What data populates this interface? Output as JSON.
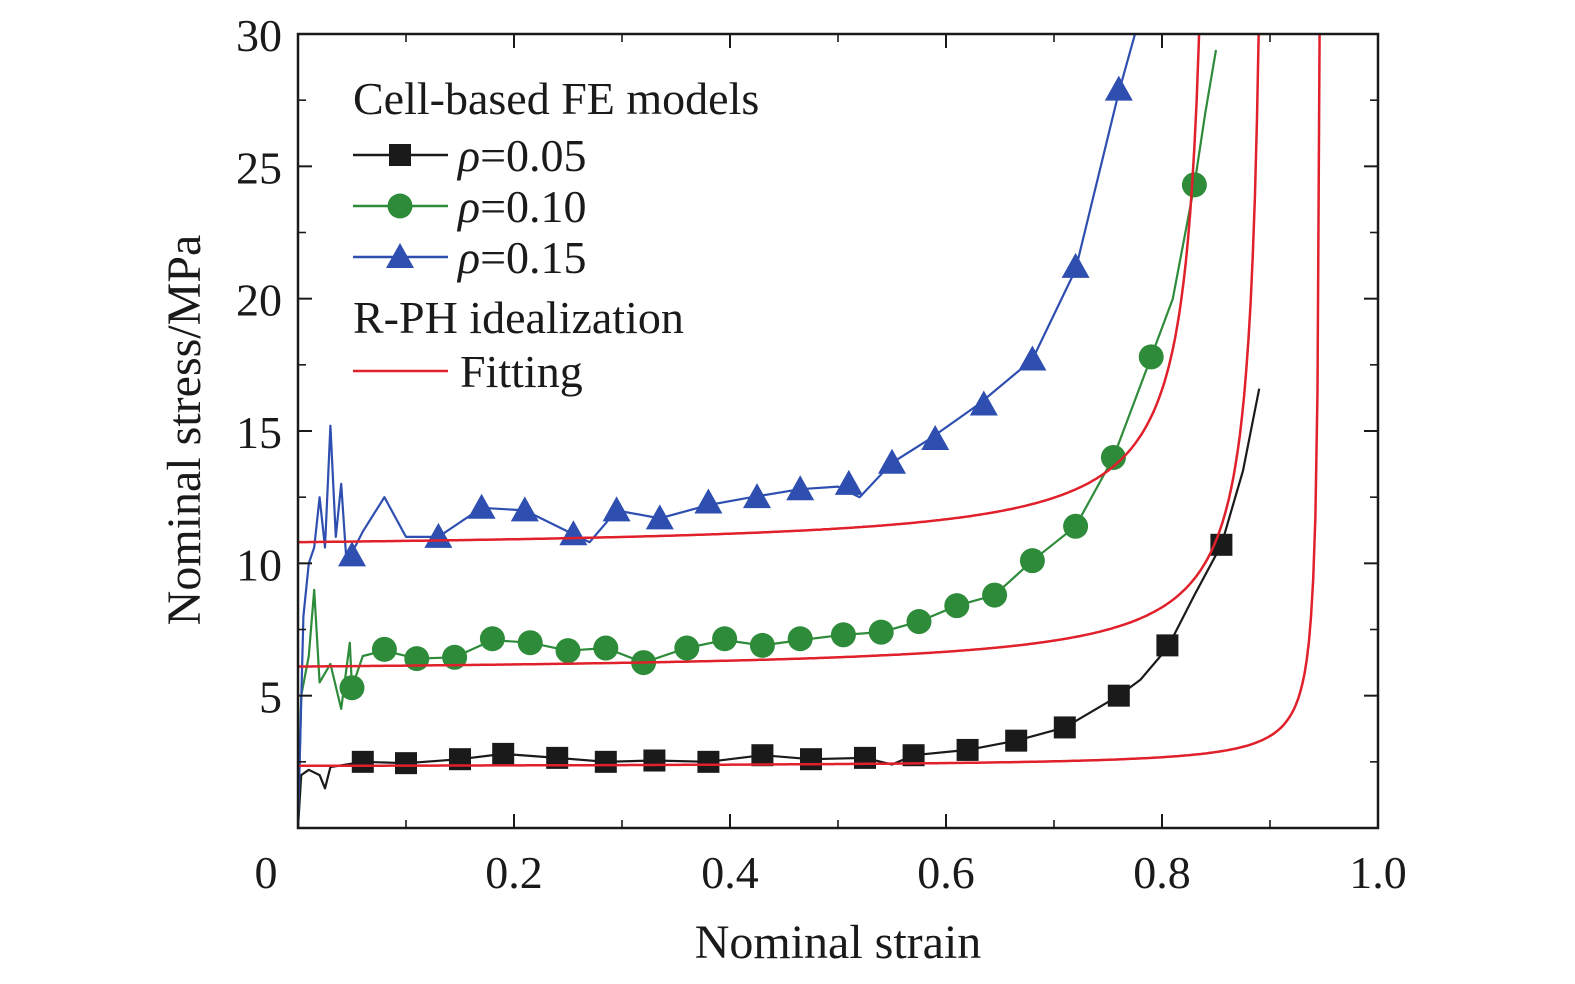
{
  "chart_data": {
    "type": "line",
    "xlabel": "Nominal strain",
    "ylabel": "Nominal stress/MPa",
    "xlim": [
      0,
      1.0
    ],
    "ylim": [
      0,
      30
    ],
    "x_ticks": [
      0,
      0.2,
      0.4,
      0.6,
      0.8,
      1.0
    ],
    "x_tick_labels": [
      "0",
      "0.2",
      "0.4",
      "0.6",
      "0.8",
      "1.0"
    ],
    "y_ticks": [
      5,
      10,
      15,
      20,
      25,
      30
    ],
    "y_tick_labels": [
      "5",
      "10",
      "15",
      "20",
      "25",
      "30"
    ],
    "grid": false,
    "legend_position": "top-left",
    "legend": {
      "heading_fe": "Cell-based FE models",
      "heading_fit": "R-PH idealization",
      "fit_label": "Fitting"
    },
    "series": [
      {
        "name": "ρ=0.05",
        "color": "#1a1a1a",
        "marker": "square",
        "fe_points": [
          [
            0.0,
            0.0
          ],
          [
            0.003,
            2.0
          ],
          [
            0.01,
            2.2
          ],
          [
            0.02,
            2.0
          ],
          [
            0.025,
            1.5
          ],
          [
            0.03,
            2.3
          ],
          [
            0.045,
            2.4
          ],
          [
            0.06,
            2.5
          ],
          [
            0.1,
            2.45
          ],
          [
            0.15,
            2.6
          ],
          [
            0.19,
            2.8
          ],
          [
            0.24,
            2.65
          ],
          [
            0.285,
            2.5
          ],
          [
            0.33,
            2.55
          ],
          [
            0.38,
            2.5
          ],
          [
            0.43,
            2.75
          ],
          [
            0.475,
            2.6
          ],
          [
            0.525,
            2.65
          ],
          [
            0.55,
            2.4
          ],
          [
            0.57,
            2.75
          ],
          [
            0.62,
            2.95
          ],
          [
            0.665,
            3.3
          ],
          [
            0.71,
            3.8
          ],
          [
            0.76,
            5.0
          ],
          [
            0.78,
            5.6
          ],
          [
            0.805,
            6.8
          ],
          [
            0.83,
            8.8
          ],
          [
            0.855,
            10.7
          ],
          [
            0.875,
            13.5
          ],
          [
            0.89,
            16.6
          ]
        ],
        "markers": [
          [
            0.06,
            2.5
          ],
          [
            0.1,
            2.45
          ],
          [
            0.15,
            2.6
          ],
          [
            0.19,
            2.8
          ],
          [
            0.24,
            2.65
          ],
          [
            0.285,
            2.5
          ],
          [
            0.33,
            2.55
          ],
          [
            0.38,
            2.5
          ],
          [
            0.43,
            2.75
          ],
          [
            0.475,
            2.6
          ],
          [
            0.525,
            2.65
          ],
          [
            0.57,
            2.75
          ],
          [
            0.62,
            2.95
          ],
          [
            0.665,
            3.3
          ],
          [
            0.71,
            3.8
          ],
          [
            0.76,
            5.0
          ],
          [
            0.805,
            6.9
          ],
          [
            0.855,
            10.7
          ]
        ],
        "fit": {
          "sigma0": 2.35,
          "A": 0.06,
          "eD": 0.948
        }
      },
      {
        "name": "ρ=0.10",
        "color": "#2e8b3a",
        "marker": "circle",
        "fe_points": [
          [
            0.0,
            0.0
          ],
          [
            0.003,
            5.0
          ],
          [
            0.01,
            6.5
          ],
          [
            0.015,
            9.0
          ],
          [
            0.02,
            5.5
          ],
          [
            0.03,
            6.2
          ],
          [
            0.04,
            4.5
          ],
          [
            0.048,
            7.0
          ],
          [
            0.05,
            5.3
          ],
          [
            0.06,
            6.5
          ],
          [
            0.08,
            6.7
          ],
          [
            0.11,
            6.4
          ],
          [
            0.145,
            6.45
          ],
          [
            0.18,
            7.1
          ],
          [
            0.215,
            7.0
          ],
          [
            0.25,
            6.7
          ],
          [
            0.285,
            6.8
          ],
          [
            0.32,
            6.25
          ],
          [
            0.36,
            6.8
          ],
          [
            0.395,
            7.1
          ],
          [
            0.43,
            6.9
          ],
          [
            0.465,
            7.1
          ],
          [
            0.505,
            7.3
          ],
          [
            0.54,
            7.4
          ],
          [
            0.575,
            7.8
          ],
          [
            0.61,
            8.4
          ],
          [
            0.645,
            8.8
          ],
          [
            0.68,
            10.1
          ],
          [
            0.72,
            11.4
          ],
          [
            0.755,
            14.0
          ],
          [
            0.79,
            17.8
          ],
          [
            0.81,
            20.0
          ],
          [
            0.83,
            24.3
          ],
          [
            0.84,
            27.0
          ],
          [
            0.85,
            29.4
          ]
        ],
        "markers": [
          [
            0.05,
            5.3
          ],
          [
            0.08,
            6.75
          ],
          [
            0.11,
            6.4
          ],
          [
            0.145,
            6.45
          ],
          [
            0.18,
            7.15
          ],
          [
            0.215,
            7.0
          ],
          [
            0.25,
            6.7
          ],
          [
            0.285,
            6.8
          ],
          [
            0.32,
            6.25
          ],
          [
            0.36,
            6.8
          ],
          [
            0.395,
            7.15
          ],
          [
            0.43,
            6.9
          ],
          [
            0.465,
            7.15
          ],
          [
            0.505,
            7.3
          ],
          [
            0.54,
            7.4
          ],
          [
            0.575,
            7.8
          ],
          [
            0.61,
            8.4
          ],
          [
            0.645,
            8.8
          ],
          [
            0.68,
            10.1
          ],
          [
            0.72,
            11.4
          ],
          [
            0.755,
            14.0
          ],
          [
            0.79,
            17.8
          ],
          [
            0.83,
            24.3
          ]
        ],
        "fit": {
          "sigma0": 6.1,
          "A": 0.28,
          "eD": 0.9
        }
      },
      {
        "name": "ρ=0.15",
        "color": "#2f4fb0",
        "marker": "triangle",
        "fe_points": [
          [
            0.0,
            0.0
          ],
          [
            0.005,
            8.0
          ],
          [
            0.01,
            10.0
          ],
          [
            0.015,
            10.6
          ],
          [
            0.02,
            12.5
          ],
          [
            0.025,
            10.6
          ],
          [
            0.03,
            15.2
          ],
          [
            0.035,
            11.0
          ],
          [
            0.04,
            13.0
          ],
          [
            0.045,
            10.0
          ],
          [
            0.06,
            11.2
          ],
          [
            0.08,
            12.5
          ],
          [
            0.1,
            11.0
          ],
          [
            0.13,
            11.0
          ],
          [
            0.17,
            12.1
          ],
          [
            0.21,
            12.0
          ],
          [
            0.25,
            11.2
          ],
          [
            0.27,
            10.8
          ],
          [
            0.295,
            12.0
          ],
          [
            0.335,
            11.7
          ],
          [
            0.38,
            12.2
          ],
          [
            0.42,
            12.5
          ],
          [
            0.465,
            12.8
          ],
          [
            0.5,
            12.9
          ],
          [
            0.52,
            12.5
          ],
          [
            0.55,
            13.8
          ],
          [
            0.585,
            14.7
          ],
          [
            0.63,
            16.0
          ],
          [
            0.68,
            17.7
          ],
          [
            0.72,
            21.1
          ],
          [
            0.76,
            27.8
          ],
          [
            0.775,
            30.0
          ]
        ],
        "markers": [
          [
            0.05,
            10.3
          ],
          [
            0.13,
            11.0
          ],
          [
            0.17,
            12.1
          ],
          [
            0.21,
            12.0
          ],
          [
            0.255,
            11.1
          ],
          [
            0.295,
            12.0
          ],
          [
            0.335,
            11.7
          ],
          [
            0.38,
            12.3
          ],
          [
            0.425,
            12.5
          ],
          [
            0.465,
            12.8
          ],
          [
            0.51,
            13.0
          ],
          [
            0.55,
            13.8
          ],
          [
            0.59,
            14.7
          ],
          [
            0.635,
            16.0
          ],
          [
            0.68,
            17.7
          ],
          [
            0.72,
            21.2
          ],
          [
            0.76,
            27.9
          ]
        ],
        "fit": {
          "sigma0": 10.8,
          "A": 0.36,
          "eD": 0.85
        }
      }
    ]
  }
}
